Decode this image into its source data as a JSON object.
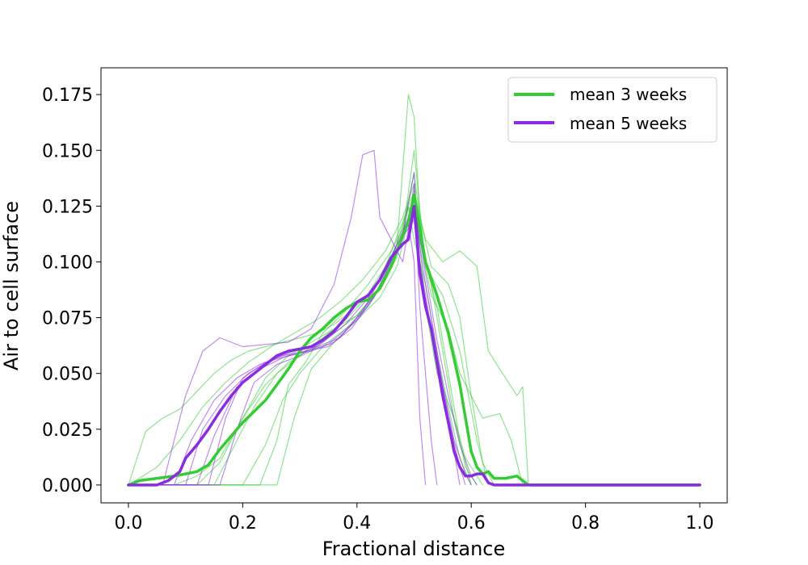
{
  "chart_data": {
    "type": "line",
    "xlabel": "Fractional distance",
    "ylabel": "Air to cell surface",
    "xlim": [
      -0.048,
      1.048
    ],
    "ylim": [
      -0.008,
      0.187
    ],
    "x_ticks": [
      "0.0",
      "0.2",
      "0.4",
      "0.6",
      "0.8",
      "1.0"
    ],
    "y_ticks": [
      "0.000",
      "0.025",
      "0.050",
      "0.075",
      "0.100",
      "0.125",
      "0.150",
      "0.175"
    ],
    "grid": false,
    "legend_position": "top-right",
    "colors": {
      "green": "#33cc33",
      "purple": "#8a2be2"
    },
    "legend": [
      {
        "label": "mean 3 weeks",
        "color": "#33cc33"
      },
      {
        "label": "mean 5 weeks",
        "color": "#8a2be2"
      }
    ],
    "series": [
      {
        "name": "mean 3 weeks",
        "color": "#33cc33",
        "x": [
          0.0,
          0.02,
          0.05,
          0.08,
          0.1,
          0.12,
          0.14,
          0.16,
          0.18,
          0.2,
          0.22,
          0.24,
          0.26,
          0.28,
          0.3,
          0.32,
          0.34,
          0.36,
          0.38,
          0.4,
          0.42,
          0.44,
          0.46,
          0.48,
          0.49,
          0.5,
          0.51,
          0.52,
          0.54,
          0.56,
          0.58,
          0.59,
          0.6,
          0.61,
          0.62,
          0.63,
          0.64,
          0.66,
          0.68,
          0.69,
          0.7,
          1.0
        ],
        "y": [
          0.0,
          0.002,
          0.003,
          0.004,
          0.005,
          0.006,
          0.009,
          0.016,
          0.022,
          0.028,
          0.033,
          0.038,
          0.045,
          0.052,
          0.06,
          0.066,
          0.07,
          0.075,
          0.079,
          0.082,
          0.083,
          0.088,
          0.098,
          0.112,
          0.118,
          0.13,
          0.115,
          0.1,
          0.085,
          0.068,
          0.045,
          0.03,
          0.015,
          0.008,
          0.005,
          0.006,
          0.003,
          0.003,
          0.004,
          0.002,
          0.0,
          0.0
        ]
      },
      {
        "name": "mean 5 weeks",
        "color": "#8a2be2",
        "x": [
          0.0,
          0.02,
          0.05,
          0.07,
          0.09,
          0.1,
          0.12,
          0.14,
          0.16,
          0.18,
          0.2,
          0.22,
          0.24,
          0.26,
          0.28,
          0.3,
          0.32,
          0.34,
          0.36,
          0.38,
          0.4,
          0.42,
          0.44,
          0.46,
          0.48,
          0.49,
          0.5,
          0.51,
          0.52,
          0.53,
          0.54,
          0.55,
          0.56,
          0.57,
          0.58,
          0.59,
          0.6,
          0.61,
          0.62,
          0.63,
          0.64,
          1.0
        ],
        "y": [
          0.0,
          0.0,
          0.0,
          0.002,
          0.006,
          0.012,
          0.018,
          0.025,
          0.033,
          0.04,
          0.046,
          0.05,
          0.054,
          0.058,
          0.06,
          0.061,
          0.062,
          0.065,
          0.069,
          0.075,
          0.082,
          0.085,
          0.092,
          0.102,
          0.108,
          0.11,
          0.125,
          0.095,
          0.08,
          0.07,
          0.055,
          0.04,
          0.028,
          0.015,
          0.008,
          0.004,
          0.004,
          0.005,
          0.005,
          0.001,
          0.0,
          0.0
        ]
      }
    ],
    "replicates": [
      {
        "color": "#33cc33",
        "x": [
          0.0,
          0.03,
          0.06,
          0.09,
          0.12,
          0.15,
          0.18,
          0.21,
          0.24,
          0.27,
          0.3,
          0.33,
          0.36,
          0.39,
          0.42,
          0.45,
          0.48,
          0.5,
          0.52,
          0.55,
          0.58,
          0.61,
          0.63,
          0.66,
          0.68,
          0.69,
          0.7
        ],
        "y": [
          0.0,
          0.024,
          0.03,
          0.034,
          0.042,
          0.05,
          0.056,
          0.06,
          0.062,
          0.064,
          0.066,
          0.068,
          0.072,
          0.078,
          0.086,
          0.098,
          0.118,
          0.132,
          0.11,
          0.1,
          0.105,
          0.098,
          0.06,
          0.048,
          0.04,
          0.044,
          0.0
        ]
      },
      {
        "color": "#33cc33",
        "x": [
          0.0,
          0.08,
          0.12,
          0.16,
          0.2,
          0.24,
          0.28,
          0.32,
          0.36,
          0.4,
          0.44,
          0.47,
          0.49,
          0.5,
          0.51,
          0.53,
          0.56,
          0.58,
          0.6,
          0.62,
          0.64
        ],
        "y": [
          0.0,
          0.0,
          0.004,
          0.012,
          0.03,
          0.048,
          0.058,
          0.064,
          0.07,
          0.076,
          0.088,
          0.108,
          0.175,
          0.165,
          0.12,
          0.098,
          0.09,
          0.075,
          0.04,
          0.01,
          0.0
        ]
      },
      {
        "color": "#33cc33",
        "x": [
          0.0,
          0.15,
          0.18,
          0.22,
          0.26,
          0.3,
          0.34,
          0.38,
          0.42,
          0.46,
          0.49,
          0.51,
          0.53,
          0.55,
          0.57,
          0.59,
          0.61
        ],
        "y": [
          0.0,
          0.0,
          0.015,
          0.035,
          0.05,
          0.058,
          0.066,
          0.074,
          0.085,
          0.1,
          0.125,
          0.11,
          0.09,
          0.06,
          0.03,
          0.008,
          0.0
        ]
      },
      {
        "color": "#33cc33",
        "x": [
          0.0,
          0.23,
          0.26,
          0.28,
          0.31,
          0.34,
          0.38,
          0.42,
          0.46,
          0.48,
          0.5,
          0.52,
          0.54,
          0.56,
          0.58,
          0.6
        ],
        "y": [
          0.0,
          0.0,
          0.02,
          0.045,
          0.055,
          0.068,
          0.078,
          0.09,
          0.105,
          0.115,
          0.14,
          0.1,
          0.08,
          0.05,
          0.02,
          0.0
        ]
      },
      {
        "color": "#33cc33",
        "x": [
          0.0,
          0.2,
          0.24,
          0.27,
          0.3,
          0.34,
          0.38,
          0.42,
          0.45,
          0.48,
          0.5,
          0.52,
          0.55,
          0.58,
          0.61,
          0.63
        ],
        "y": [
          0.0,
          0.0,
          0.018,
          0.038,
          0.05,
          0.062,
          0.07,
          0.08,
          0.095,
          0.112,
          0.15,
          0.098,
          0.085,
          0.06,
          0.02,
          0.0
        ]
      },
      {
        "color": "#33cc33",
        "x": [
          0.0,
          0.05,
          0.09,
          0.13,
          0.17,
          0.21,
          0.25,
          0.29,
          0.33,
          0.37,
          0.41,
          0.45,
          0.48,
          0.5,
          0.52,
          0.54,
          0.57,
          0.59,
          0.61,
          0.62
        ],
        "y": [
          0.0,
          0.008,
          0.02,
          0.035,
          0.046,
          0.055,
          0.062,
          0.068,
          0.074,
          0.082,
          0.092,
          0.105,
          0.12,
          0.135,
          0.08,
          0.05,
          0.03,
          0.012,
          0.004,
          0.0
        ]
      },
      {
        "color": "#33cc33",
        "x": [
          0.0,
          0.26,
          0.29,
          0.32,
          0.36,
          0.4,
          0.44,
          0.47,
          0.49,
          0.5,
          0.51,
          0.53,
          0.56,
          0.58,
          0.6,
          0.62,
          0.65,
          0.67,
          0.69
        ],
        "y": [
          0.0,
          0.0,
          0.03,
          0.052,
          0.064,
          0.074,
          0.084,
          0.098,
          0.118,
          0.128,
          0.11,
          0.085,
          0.07,
          0.05,
          0.04,
          0.03,
          0.032,
          0.02,
          0.0
        ]
      },
      {
        "color": "#33cc33",
        "x": [
          0.0,
          0.12,
          0.16,
          0.2,
          0.24,
          0.28,
          0.32,
          0.36,
          0.4,
          0.44,
          0.47,
          0.49,
          0.5,
          0.52,
          0.54,
          0.56,
          0.58,
          0.6
        ],
        "y": [
          0.0,
          0.0,
          0.01,
          0.03,
          0.045,
          0.055,
          0.06,
          0.068,
          0.076,
          0.088,
          0.102,
          0.124,
          0.11,
          0.09,
          0.06,
          0.035,
          0.012,
          0.0
        ]
      },
      {
        "color": "#8a2be2",
        "x": [
          0.0,
          0.06,
          0.1,
          0.13,
          0.16,
          0.2,
          0.24,
          0.28,
          0.32,
          0.36,
          0.39,
          0.41,
          0.43,
          0.44,
          0.46,
          0.48,
          0.5,
          0.51,
          0.52,
          0.53,
          0.54
        ],
        "y": [
          0.0,
          0.0,
          0.04,
          0.06,
          0.066,
          0.062,
          0.063,
          0.064,
          0.07,
          0.09,
          0.12,
          0.148,
          0.15,
          0.12,
          0.11,
          0.1,
          0.13,
          0.08,
          0.05,
          0.02,
          0.0
        ]
      },
      {
        "color": "#8a2be2",
        "x": [
          0.0,
          0.1,
          0.13,
          0.17,
          0.21,
          0.25,
          0.29,
          0.33,
          0.37,
          0.41,
          0.44,
          0.47,
          0.49,
          0.5,
          0.51,
          0.53,
          0.55,
          0.57,
          0.59,
          0.6
        ],
        "y": [
          0.0,
          0.0,
          0.025,
          0.04,
          0.05,
          0.056,
          0.06,
          0.062,
          0.066,
          0.078,
          0.092,
          0.108,
          0.115,
          0.135,
          0.1,
          0.07,
          0.045,
          0.02,
          0.005,
          0.0
        ]
      },
      {
        "color": "#8a2be2",
        "x": [
          0.0,
          0.14,
          0.17,
          0.2,
          0.24,
          0.28,
          0.32,
          0.36,
          0.4,
          0.44,
          0.47,
          0.49,
          0.5,
          0.52,
          0.54,
          0.56,
          0.58,
          0.59
        ],
        "y": [
          0.0,
          0.0,
          0.03,
          0.048,
          0.055,
          0.058,
          0.06,
          0.064,
          0.074,
          0.088,
          0.104,
          0.118,
          0.125,
          0.09,
          0.06,
          0.03,
          0.008,
          0.0
        ]
      },
      {
        "color": "#8a2be2",
        "x": [
          0.0,
          0.08,
          0.11,
          0.15,
          0.19,
          0.23,
          0.27,
          0.31,
          0.35,
          0.39,
          0.43,
          0.46,
          0.48,
          0.5,
          0.51,
          0.53,
          0.55,
          0.57,
          0.58
        ],
        "y": [
          0.0,
          0.0,
          0.02,
          0.038,
          0.048,
          0.054,
          0.058,
          0.06,
          0.062,
          0.07,
          0.084,
          0.1,
          0.112,
          0.14,
          0.098,
          0.068,
          0.04,
          0.015,
          0.0
        ]
      },
      {
        "color": "#8a2be2",
        "x": [
          0.0,
          0.12,
          0.15,
          0.19,
          0.23,
          0.27,
          0.31,
          0.35,
          0.39,
          0.43,
          0.46,
          0.48,
          0.49,
          0.5,
          0.51,
          0.52
        ],
        "y": [
          0.0,
          0.0,
          0.022,
          0.044,
          0.052,
          0.057,
          0.06,
          0.063,
          0.072,
          0.085,
          0.098,
          0.11,
          0.118,
          0.1,
          0.03,
          0.0
        ]
      },
      {
        "color": "#8a2be2",
        "x": [
          0.0,
          0.16,
          0.19,
          0.22,
          0.26,
          0.3,
          0.34,
          0.38,
          0.42,
          0.45,
          0.47,
          0.49,
          0.5,
          0.52,
          0.54,
          0.56,
          0.58,
          0.6,
          0.61
        ],
        "y": [
          0.0,
          0.0,
          0.025,
          0.046,
          0.054,
          0.058,
          0.064,
          0.072,
          0.084,
          0.096,
          0.108,
          0.12,
          0.128,
          0.095,
          0.065,
          0.04,
          0.018,
          0.004,
          0.0
        ]
      }
    ]
  }
}
